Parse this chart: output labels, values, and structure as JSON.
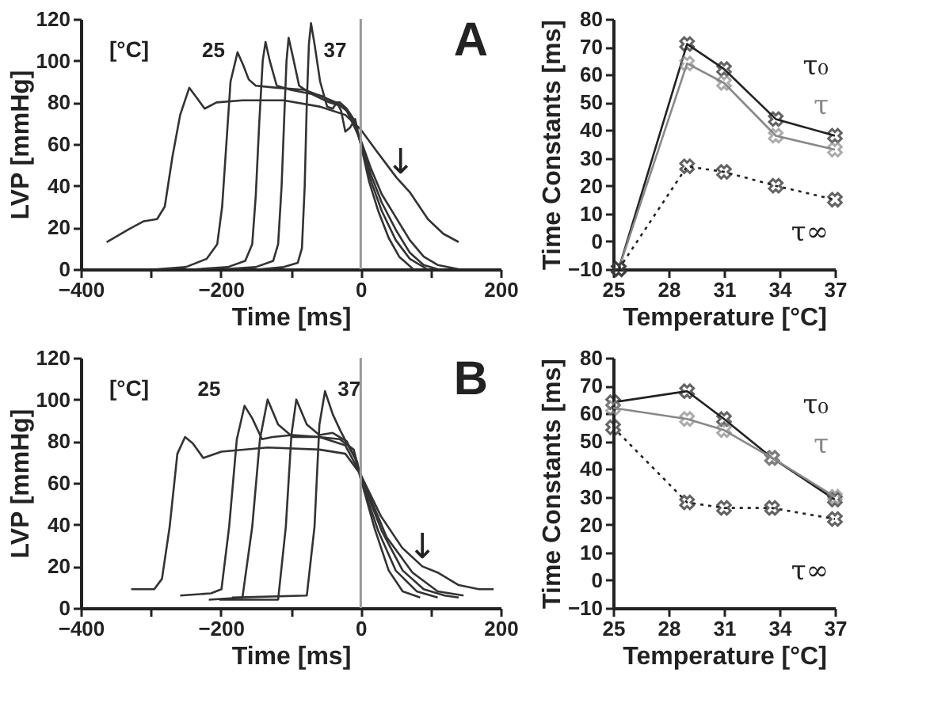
{
  "chart_data": [
    {
      "type": "line",
      "xlabel": "Time  [ms]",
      "ylabel": "LVP  [mmHg]",
      "xlim": [
        -400,
        200
      ],
      "ylim": [
        0,
        120
      ],
      "xticks": [
        -400,
        {
          "value": -300,
          "label": null
        },
        -200,
        {
          "value": -100,
          "label": null
        },
        0,
        {
          "value": 100,
          "label": null
        },
        200
      ],
      "yticks": [
        0,
        20,
        40,
        60,
        80,
        100,
        120
      ],
      "grid": false,
      "legend": false,
      "marker": "none",
      "line_style": "solid",
      "ref_lines": [
        {
          "axis": "x",
          "value": 0,
          "color": "#999999"
        }
      ],
      "annotations": [
        "[°C]",
        "A",
        {
          "text": "↓",
          "x": 57,
          "y": 42
        }
      ],
      "series": [
        {
          "name": "25",
          "color": "#333333",
          "x": [
            -363,
            -332,
            -310,
            -291,
            -280,
            -269,
            -258,
            -245,
            -236,
            -223,
            -206,
            -169,
            -110,
            -59,
            -22,
            0,
            22,
            51,
            70,
            96,
            118,
            140
          ],
          "values": [
            13,
            19,
            23,
            24,
            30,
            54,
            74,
            87,
            83,
            77,
            80,
            81,
            81,
            78,
            74,
            67,
            57,
            44,
            37,
            24,
            17,
            13
          ]
        },
        {
          "color": "#333333",
          "x": [
            -291,
            -250,
            -220,
            -205,
            -198,
            -192,
            -186,
            -176,
            -168,
            -160,
            -150,
            -120,
            -80,
            -50,
            -35,
            -20,
            0,
            15,
            30,
            50,
            70,
            90,
            110,
            140
          ],
          "values": [
            0,
            1,
            5,
            12,
            30,
            60,
            90,
            104,
            98,
            91,
            88,
            87,
            86,
            82,
            80,
            76,
            62,
            48,
            36,
            25,
            14,
            6,
            2,
            0
          ]
        },
        {
          "color": "#333333",
          "x": [
            -235,
            -190,
            -165,
            -155,
            -150,
            -145,
            -140,
            -136,
            -130,
            -120,
            -100,
            -70,
            -45,
            -35,
            -25,
            -15,
            0,
            15,
            30,
            50,
            70,
            90,
            110
          ],
          "values": [
            0,
            1,
            4,
            12,
            35,
            70,
            100,
            109,
            100,
            88,
            86,
            84,
            80,
            79,
            78,
            74,
            61,
            45,
            32,
            19,
            8,
            2,
            0
          ]
        },
        {
          "color": "#333333",
          "x": [
            -195,
            -150,
            -125,
            -118,
            -113,
            -109,
            -106,
            -103,
            -97,
            -88,
            -75,
            -55,
            -40,
            -30,
            -20,
            -10,
            0,
            15,
            30,
            50,
            70,
            95
          ],
          "values": [
            0,
            1,
            4,
            12,
            40,
            75,
            100,
            111,
            102,
            88,
            85,
            83,
            80,
            80,
            77,
            72,
            60,
            42,
            28,
            14,
            5,
            0
          ]
        },
        {
          "name": "37",
          "color": "#333333",
          "x": [
            -143,
            -110,
            -90,
            -84,
            -80,
            -77,
            -74,
            -71,
            -66,
            -58,
            -48,
            -40,
            -34,
            -28,
            -22,
            -15,
            -8,
            0,
            12,
            25,
            40,
            55,
            75
          ],
          "values": [
            0,
            1,
            3,
            10,
            40,
            80,
            108,
            118,
            108,
            90,
            78,
            77,
            80,
            76,
            66,
            68,
            72,
            60,
            42,
            28,
            15,
            6,
            0
          ]
        }
      ]
    },
    {
      "type": "line",
      "xlabel": "Temperature [°C]",
      "ylabel": "Time Constants [ms]",
      "xlim": [
        25,
        37
      ],
      "ylim": [
        -10,
        80
      ],
      "xticks": [
        25,
        28,
        31,
        34,
        37
      ],
      "yticks": [
        -10,
        0,
        10,
        20,
        30,
        40,
        50,
        60,
        70,
        80
      ],
      "grid": false,
      "legend": false,
      "marker": "cross",
      "series": [
        {
          "name": "τ₀",
          "color": "#222222",
          "line_style": "solid",
          "x": [
            25.3,
            29,
            31,
            33.8,
            37
          ],
          "values": [
            -10,
            71,
            62,
            44,
            38
          ]
        },
        {
          "name": "τ",
          "color": "#888888",
          "line_style": "solid",
          "x": [
            25.3,
            29,
            31,
            33.8,
            37
          ],
          "values": [
            -10,
            64,
            57,
            38,
            33
          ]
        },
        {
          "name": "τ∞",
          "color": "#222222",
          "line_style": "dotted",
          "x": [
            25.3,
            29,
            31,
            33.8,
            37
          ],
          "values": [
            -10,
            27,
            25,
            20,
            15
          ]
        }
      ]
    },
    {
      "type": "line",
      "xlabel": "Time  [ms]",
      "ylabel": "LVP  [mmHg]",
      "xlim": [
        -400,
        200
      ],
      "ylim": [
        0,
        120
      ],
      "xticks": [
        -400,
        {
          "value": -300,
          "label": null
        },
        -200,
        {
          "value": -100,
          "label": null
        },
        0,
        {
          "value": 100,
          "label": null
        },
        200
      ],
      "yticks": [
        0,
        20,
        40,
        60,
        80,
        100,
        120
      ],
      "grid": false,
      "legend": false,
      "marker": "none",
      "line_style": "solid",
      "ref_lines": [
        {
          "axis": "x",
          "value": 0,
          "color": "#999999"
        }
      ],
      "annotations": [
        "[°C]",
        "B",
        {
          "text": "↓",
          "x": 88,
          "y": 20
        }
      ],
      "series": [
        {
          "name": "25",
          "color": "#333333",
          "x": [
            -328,
            -295,
            -284,
            -273,
            -262,
            -251,
            -240,
            -225,
            -199,
            -133,
            -59,
            -22,
            0,
            29,
            59,
            88,
            110,
            140,
            169,
            190
          ],
          "values": [
            9,
            9,
            14,
            39,
            74,
            82,
            79,
            72,
            75,
            77,
            76,
            74,
            64,
            44,
            29,
            20,
            17,
            11,
            9,
            9
          ]
        },
        {
          "color": "#333333",
          "x": [
            -258,
            -214,
            -199,
            -188,
            -177,
            -166,
            -155,
            -141,
            -126,
            -97,
            -59,
            -22,
            0,
            37,
            74,
            110,
            147
          ],
          "values": [
            6,
            7,
            9,
            39,
            81,
            97,
            91,
            81,
            82,
            83,
            82,
            78,
            64,
            34,
            17,
            8,
            6
          ]
        },
        {
          "color": "#333333",
          "x": [
            -217,
            -169,
            -155,
            -144,
            -133,
            -118,
            -97,
            -60,
            -30,
            -10,
            0,
            30,
            60,
            90,
            120,
            140
          ],
          "values": [
            4,
            5,
            39,
            81,
            100,
            88,
            82,
            82,
            81,
            76,
            63,
            37,
            18,
            9,
            6,
            5
          ]
        },
        {
          "color": "#333333",
          "x": [
            -202,
            -118,
            -107,
            -99,
            -92,
            -77,
            -59,
            -40,
            -20,
            -8,
            0,
            25,
            50,
            80,
            110
          ],
          "values": [
            4,
            4,
            39,
            83,
            100,
            88,
            83,
            84,
            80,
            72,
            62,
            37,
            18,
            8,
            5
          ]
        },
        {
          "name": "37",
          "color": "#333333",
          "x": [
            -184,
            -77,
            -66,
            -59,
            -51,
            -40,
            -29,
            -15,
            -5,
            0,
            20,
            40,
            60,
            85
          ],
          "values": [
            5,
            6,
            39,
            88,
            104,
            93,
            85,
            76,
            70,
            62,
            38,
            18,
            8,
            5
          ]
        }
      ]
    },
    {
      "type": "line",
      "xlabel": "Temperature [°C]",
      "ylabel": "Time Constants [ms]",
      "xlim": [
        25,
        37
      ],
      "ylim": [
        -10,
        80
      ],
      "xticks": [
        25,
        28,
        31,
        34,
        37
      ],
      "yticks": [
        -10,
        0,
        10,
        20,
        30,
        40,
        50,
        60,
        70,
        80
      ],
      "grid": false,
      "legend": false,
      "marker": "cross",
      "series": [
        {
          "name": "τ₀",
          "color": "#222222",
          "line_style": "solid",
          "x": [
            25,
            29,
            31,
            33.6,
            37
          ],
          "values": [
            64,
            68,
            58,
            44,
            29
          ]
        },
        {
          "name": "τ",
          "color": "#888888",
          "line_style": "solid",
          "x": [
            25,
            29,
            31,
            33.6,
            37
          ],
          "values": [
            62,
            58,
            54,
            44,
            30
          ]
        },
        {
          "name": "τ∞",
          "color": "#222222",
          "line_style": "dotted",
          "x": [
            25,
            29,
            31,
            33.6,
            37
          ],
          "values": [
            55,
            28,
            26,
            26,
            22
          ]
        }
      ]
    }
  ]
}
